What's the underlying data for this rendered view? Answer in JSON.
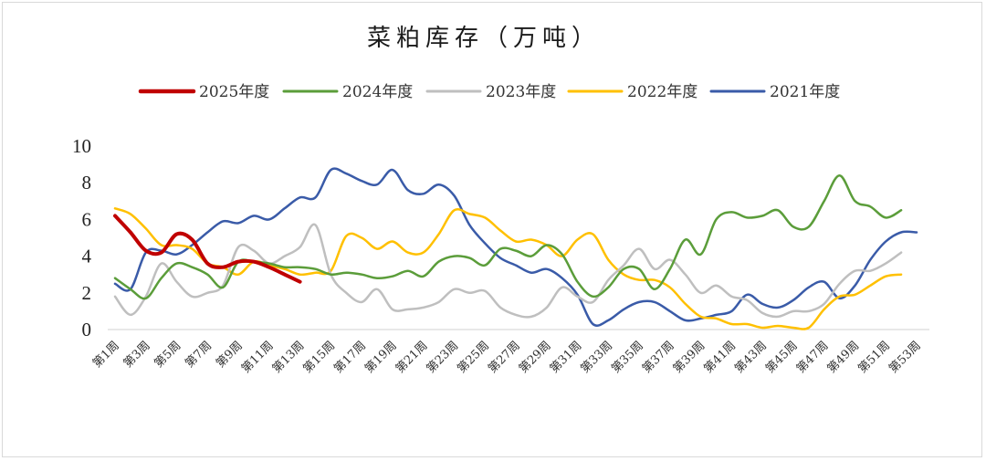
{
  "chart_data": {
    "type": "line",
    "title": "菜粕库存（万吨）",
    "xlabel": "",
    "ylabel": "",
    "ylim": [
      0,
      10
    ],
    "yticks": [
      "0",
      "2",
      "4",
      "6",
      "8",
      "10"
    ],
    "x_ticks": [
      "第1周",
      "第3周",
      "第5周",
      "第7周",
      "第9周",
      "第11周",
      "第13周",
      "第15周",
      "第17周",
      "第19周",
      "第21周",
      "第23周",
      "第25周",
      "第27周",
      "第29周",
      "第31周",
      "第33周",
      "第35周",
      "第37周",
      "第39周",
      "第41周",
      "第43周",
      "第45周",
      "第47周",
      "第49周",
      "第51周",
      "第53周"
    ],
    "x_tick_weeks": [
      1,
      3,
      5,
      7,
      9,
      11,
      13,
      15,
      17,
      19,
      21,
      23,
      25,
      27,
      29,
      31,
      33,
      35,
      37,
      39,
      41,
      43,
      45,
      47,
      49,
      51,
      53
    ],
    "grid": false,
    "legend": "top",
    "series": [
      {
        "name": "2025年度",
        "color": "#c00000",
        "width": 4,
        "x": [
          1,
          2,
          3,
          4,
          5,
          6,
          7,
          8,
          9,
          10,
          11,
          12,
          13
        ],
        "values": [
          6.2,
          5.3,
          4.3,
          4.2,
          5.2,
          4.9,
          3.6,
          3.4,
          3.7,
          3.7,
          3.4,
          3.0,
          2.6
        ]
      },
      {
        "name": "2024年度",
        "color": "#5b9d3a",
        "width": 2.5,
        "x": [
          1,
          2,
          3,
          4,
          5,
          6,
          7,
          8,
          9,
          10,
          11,
          12,
          13,
          14,
          15,
          16,
          17,
          18,
          19,
          20,
          21,
          22,
          23,
          24,
          25,
          26,
          27,
          28,
          29,
          30,
          31,
          32,
          33,
          34,
          35,
          36,
          37,
          38,
          39,
          40,
          41,
          42,
          43,
          44,
          45,
          46,
          47,
          48,
          49,
          50,
          51,
          52
        ],
        "values": [
          2.8,
          2.2,
          1.7,
          2.8,
          3.6,
          3.4,
          3.0,
          2.3,
          3.7,
          3.7,
          3.6,
          3.4,
          3.4,
          3.3,
          3.0,
          3.1,
          3.0,
          2.8,
          2.9,
          3.2,
          2.9,
          3.7,
          4.0,
          3.9,
          3.5,
          4.4,
          4.3,
          4.0,
          4.6,
          4.1,
          2.6,
          1.8,
          2.3,
          3.3,
          3.3,
          2.2,
          3.3,
          4.9,
          4.1,
          6.0,
          6.4,
          6.1,
          6.2,
          6.5,
          5.6,
          5.6,
          7.0,
          8.4,
          7.0,
          6.7,
          6.1,
          6.5
        ]
      },
      {
        "name": "2023年度",
        "color": "#bfbfbf",
        "width": 2.5,
        "x": [
          1,
          2,
          3,
          4,
          5,
          6,
          7,
          8,
          9,
          10,
          11,
          12,
          13,
          14,
          15,
          16,
          17,
          18,
          19,
          20,
          21,
          22,
          23,
          24,
          25,
          26,
          27,
          28,
          29,
          30,
          31,
          32,
          33,
          34,
          35,
          36,
          37,
          38,
          39,
          40,
          41,
          42,
          43,
          44,
          45,
          46,
          47,
          48,
          49,
          50,
          51,
          52
        ],
        "values": [
          1.8,
          0.8,
          1.8,
          3.6,
          2.6,
          1.8,
          2.0,
          2.4,
          4.5,
          4.3,
          3.6,
          4.0,
          4.5,
          5.7,
          3.0,
          2.0,
          1.5,
          2.2,
          1.1,
          1.1,
          1.2,
          1.5,
          2.2,
          2.0,
          2.1,
          1.2,
          0.8,
          0.7,
          1.2,
          2.3,
          1.8,
          1.5,
          2.7,
          3.5,
          4.4,
          3.3,
          3.8,
          3.0,
          2.0,
          2.4,
          1.8,
          1.6,
          0.9,
          0.7,
          1.0,
          1.0,
          1.4,
          2.5,
          3.2,
          3.2,
          3.6,
          4.2
        ]
      },
      {
        "name": "2022年度",
        "color": "#ffc000",
        "width": 2.5,
        "x": [
          1,
          2,
          3,
          4,
          5,
          6,
          7,
          8,
          9,
          10,
          11,
          12,
          13,
          14,
          15,
          16,
          17,
          18,
          19,
          20,
          21,
          22,
          23,
          24,
          25,
          26,
          27,
          28,
          29,
          30,
          31,
          32,
          33,
          34,
          35,
          36,
          37,
          38,
          39,
          40,
          41,
          42,
          43,
          44,
          45,
          46,
          47,
          48,
          49,
          50,
          51,
          52
        ],
        "values": [
          6.6,
          6.3,
          5.5,
          4.6,
          4.6,
          4.4,
          3.6,
          3.4,
          3.0,
          3.7,
          3.5,
          3.3,
          3.0,
          3.1,
          3.2,
          5.1,
          5.0,
          4.4,
          4.8,
          4.2,
          4.2,
          5.2,
          6.5,
          6.3,
          6.1,
          5.4,
          4.8,
          4.9,
          4.6,
          4.0,
          4.9,
          5.2,
          3.8,
          3.0,
          2.7,
          2.7,
          2.3,
          1.4,
          0.7,
          0.6,
          0.3,
          0.3,
          0.1,
          0.2,
          0.1,
          0.1,
          1.1,
          1.8,
          1.9,
          2.4,
          2.9,
          3.0
        ]
      },
      {
        "name": "2021年度",
        "color": "#3a5ba8",
        "width": 2.5,
        "x": [
          1,
          2,
          3,
          4,
          5,
          6,
          7,
          8,
          9,
          10,
          11,
          12,
          13,
          14,
          15,
          16,
          17,
          18,
          19,
          20,
          21,
          22,
          23,
          24,
          25,
          26,
          27,
          28,
          29,
          30,
          31,
          32,
          33,
          34,
          35,
          36,
          37,
          38,
          39,
          40,
          41,
          42,
          43,
          44,
          45,
          46,
          47,
          48,
          49,
          50,
          51,
          52,
          53
        ],
        "values": [
          2.5,
          2.2,
          4.2,
          4.3,
          4.1,
          4.6,
          5.3,
          5.9,
          5.8,
          6.2,
          6.0,
          6.6,
          7.2,
          7.2,
          8.7,
          8.5,
          8.1,
          7.9,
          8.7,
          7.6,
          7.4,
          7.9,
          7.3,
          5.7,
          4.7,
          3.9,
          3.5,
          3.1,
          3.3,
          2.8,
          1.9,
          0.3,
          0.5,
          1.1,
          1.5,
          1.5,
          1.0,
          0.5,
          0.6,
          0.8,
          1.0,
          1.9,
          1.4,
          1.2,
          1.6,
          2.3,
          2.6,
          1.7,
          2.4,
          3.8,
          4.8,
          5.3,
          5.3
        ]
      }
    ]
  }
}
